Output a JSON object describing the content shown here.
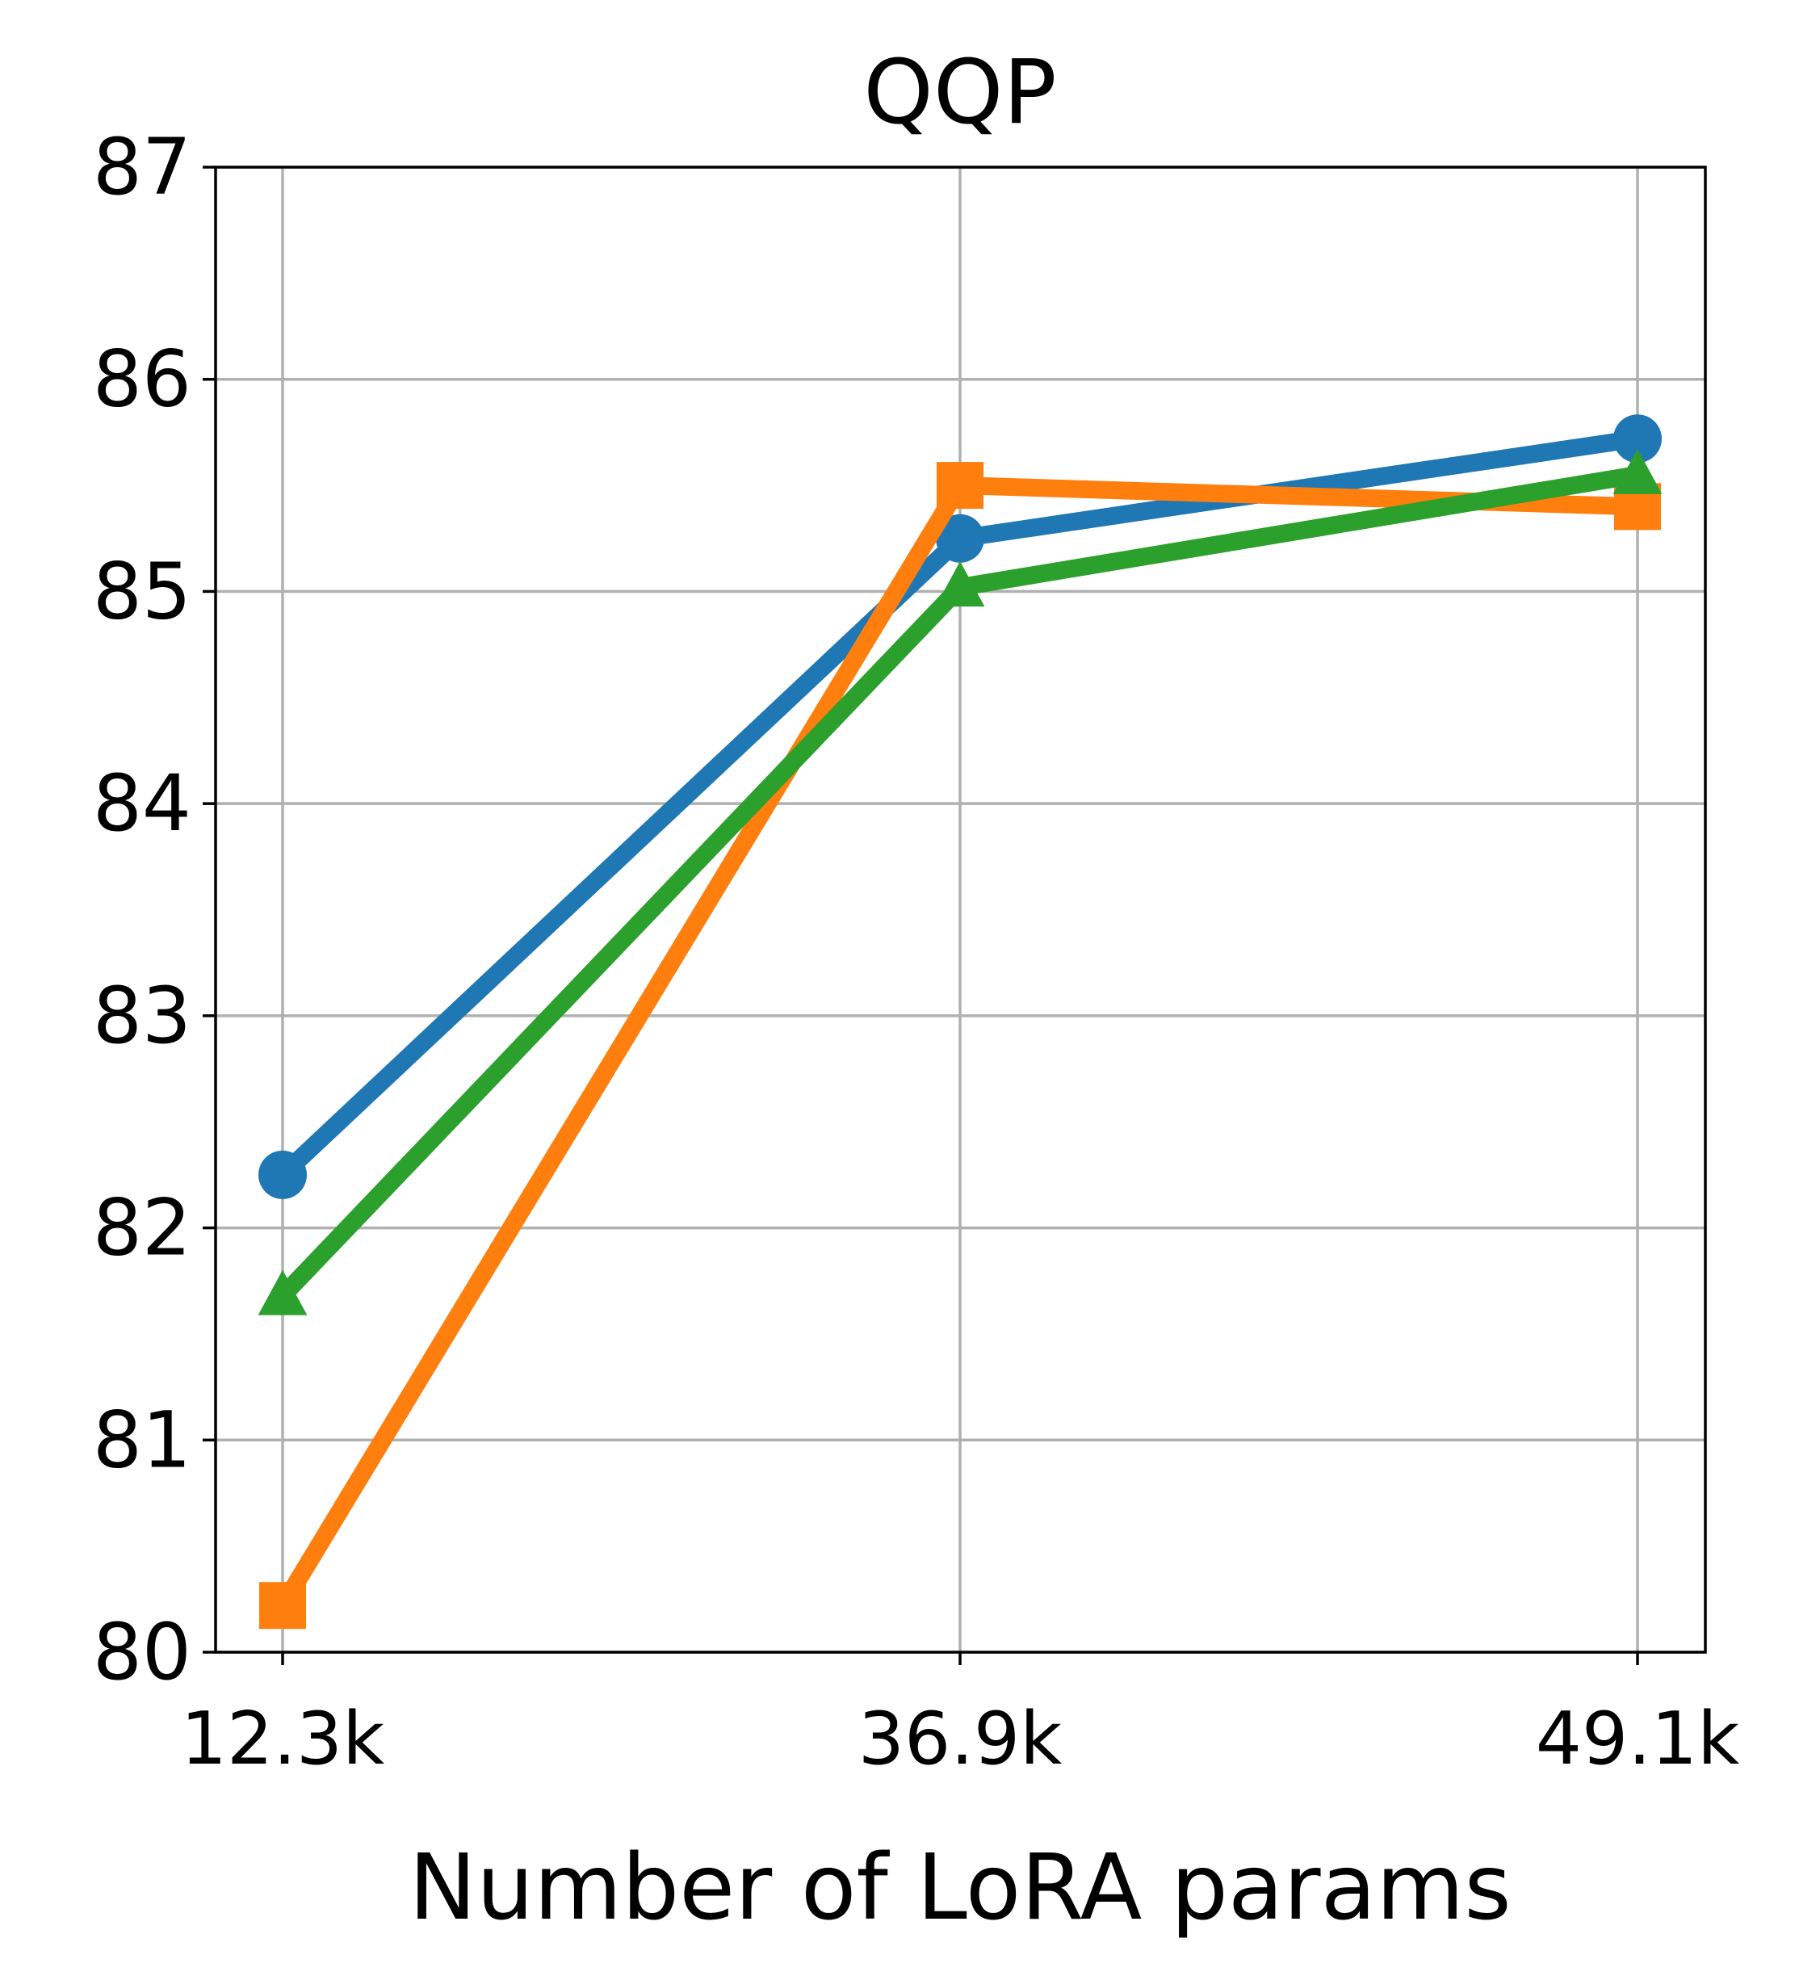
{
  "chart_data": {
    "type": "line",
    "title": "QQP",
    "xlabel": "Number of LoRA params",
    "ylabel": "",
    "categories": [
      "12.3k",
      "36.9k",
      "49.1k"
    ],
    "yticks": [
      "80",
      "81",
      "82",
      "83",
      "84",
      "85",
      "86",
      "87"
    ],
    "ylim": [
      80,
      87
    ],
    "grid": true,
    "series": [
      {
        "color": "#1f77b4",
        "marker": "circle",
        "values": [
          82.25,
          85.25,
          85.72
        ]
      },
      {
        "color": "#ff7f0e",
        "marker": "square",
        "values": [
          80.22,
          85.5,
          85.4
        ]
      },
      {
        "color": "#2ca02c",
        "marker": "triangle",
        "values": [
          81.68,
          85.02,
          85.55
        ]
      }
    ]
  }
}
